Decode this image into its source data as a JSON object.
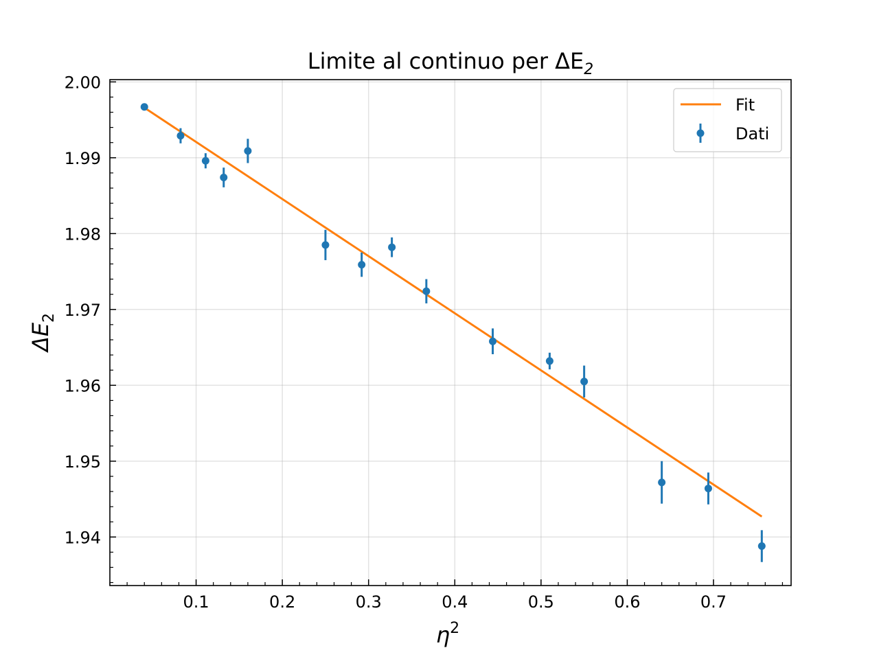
{
  "chart_data": {
    "type": "scatter",
    "title": "Limite al continuo per ΔE",
    "title_sub": "2",
    "xlabel": "η",
    "xlabel_sup": "2",
    "ylabel": "ΔE",
    "ylabel_sub": "2",
    "xlim": [
      0.0,
      0.79
    ],
    "ylim": [
      1.9336,
      2.0003
    ],
    "xticks": [
      0.1,
      0.2,
      0.3,
      0.4,
      0.5,
      0.6,
      0.7
    ],
    "xtick_labels": [
      "0.1",
      "0.2",
      "0.3",
      "0.4",
      "0.5",
      "0.6",
      "0.7"
    ],
    "yticks": [
      1.94,
      1.95,
      1.96,
      1.97,
      1.98,
      1.99,
      2.0
    ],
    "ytick_labels": [
      "1.94",
      "1.95",
      "1.96",
      "1.97",
      "1.98",
      "1.99",
      "2.00"
    ],
    "grid": true,
    "legend": {
      "position": "top-right",
      "fit_label": "Fit",
      "data_label": "Dati"
    },
    "fit": {
      "name": "Fit",
      "color": "#ff7f0e",
      "x": [
        0.04,
        0.756
      ],
      "y": [
        1.9966,
        1.9427
      ]
    },
    "series": [
      {
        "name": "Dati",
        "color": "#1f77b4",
        "x": [
          0.04,
          0.082,
          0.111,
          0.132,
          0.16,
          0.25,
          0.292,
          0.327,
          0.367,
          0.444,
          0.51,
          0.55,
          0.64,
          0.694,
          0.756
        ],
        "y": [
          1.9967,
          1.9929,
          1.9896,
          1.9874,
          1.9909,
          1.9785,
          1.9759,
          1.9782,
          1.9724,
          1.9658,
          1.9632,
          1.9605,
          1.9472,
          1.9464,
          1.9388
        ],
        "yerr": [
          0.0004,
          0.001,
          0.001,
          0.0013,
          0.0016,
          0.002,
          0.0016,
          0.0013,
          0.0016,
          0.0017,
          0.0011,
          0.0021,
          0.0028,
          0.0021,
          0.0021
        ]
      }
    ]
  }
}
